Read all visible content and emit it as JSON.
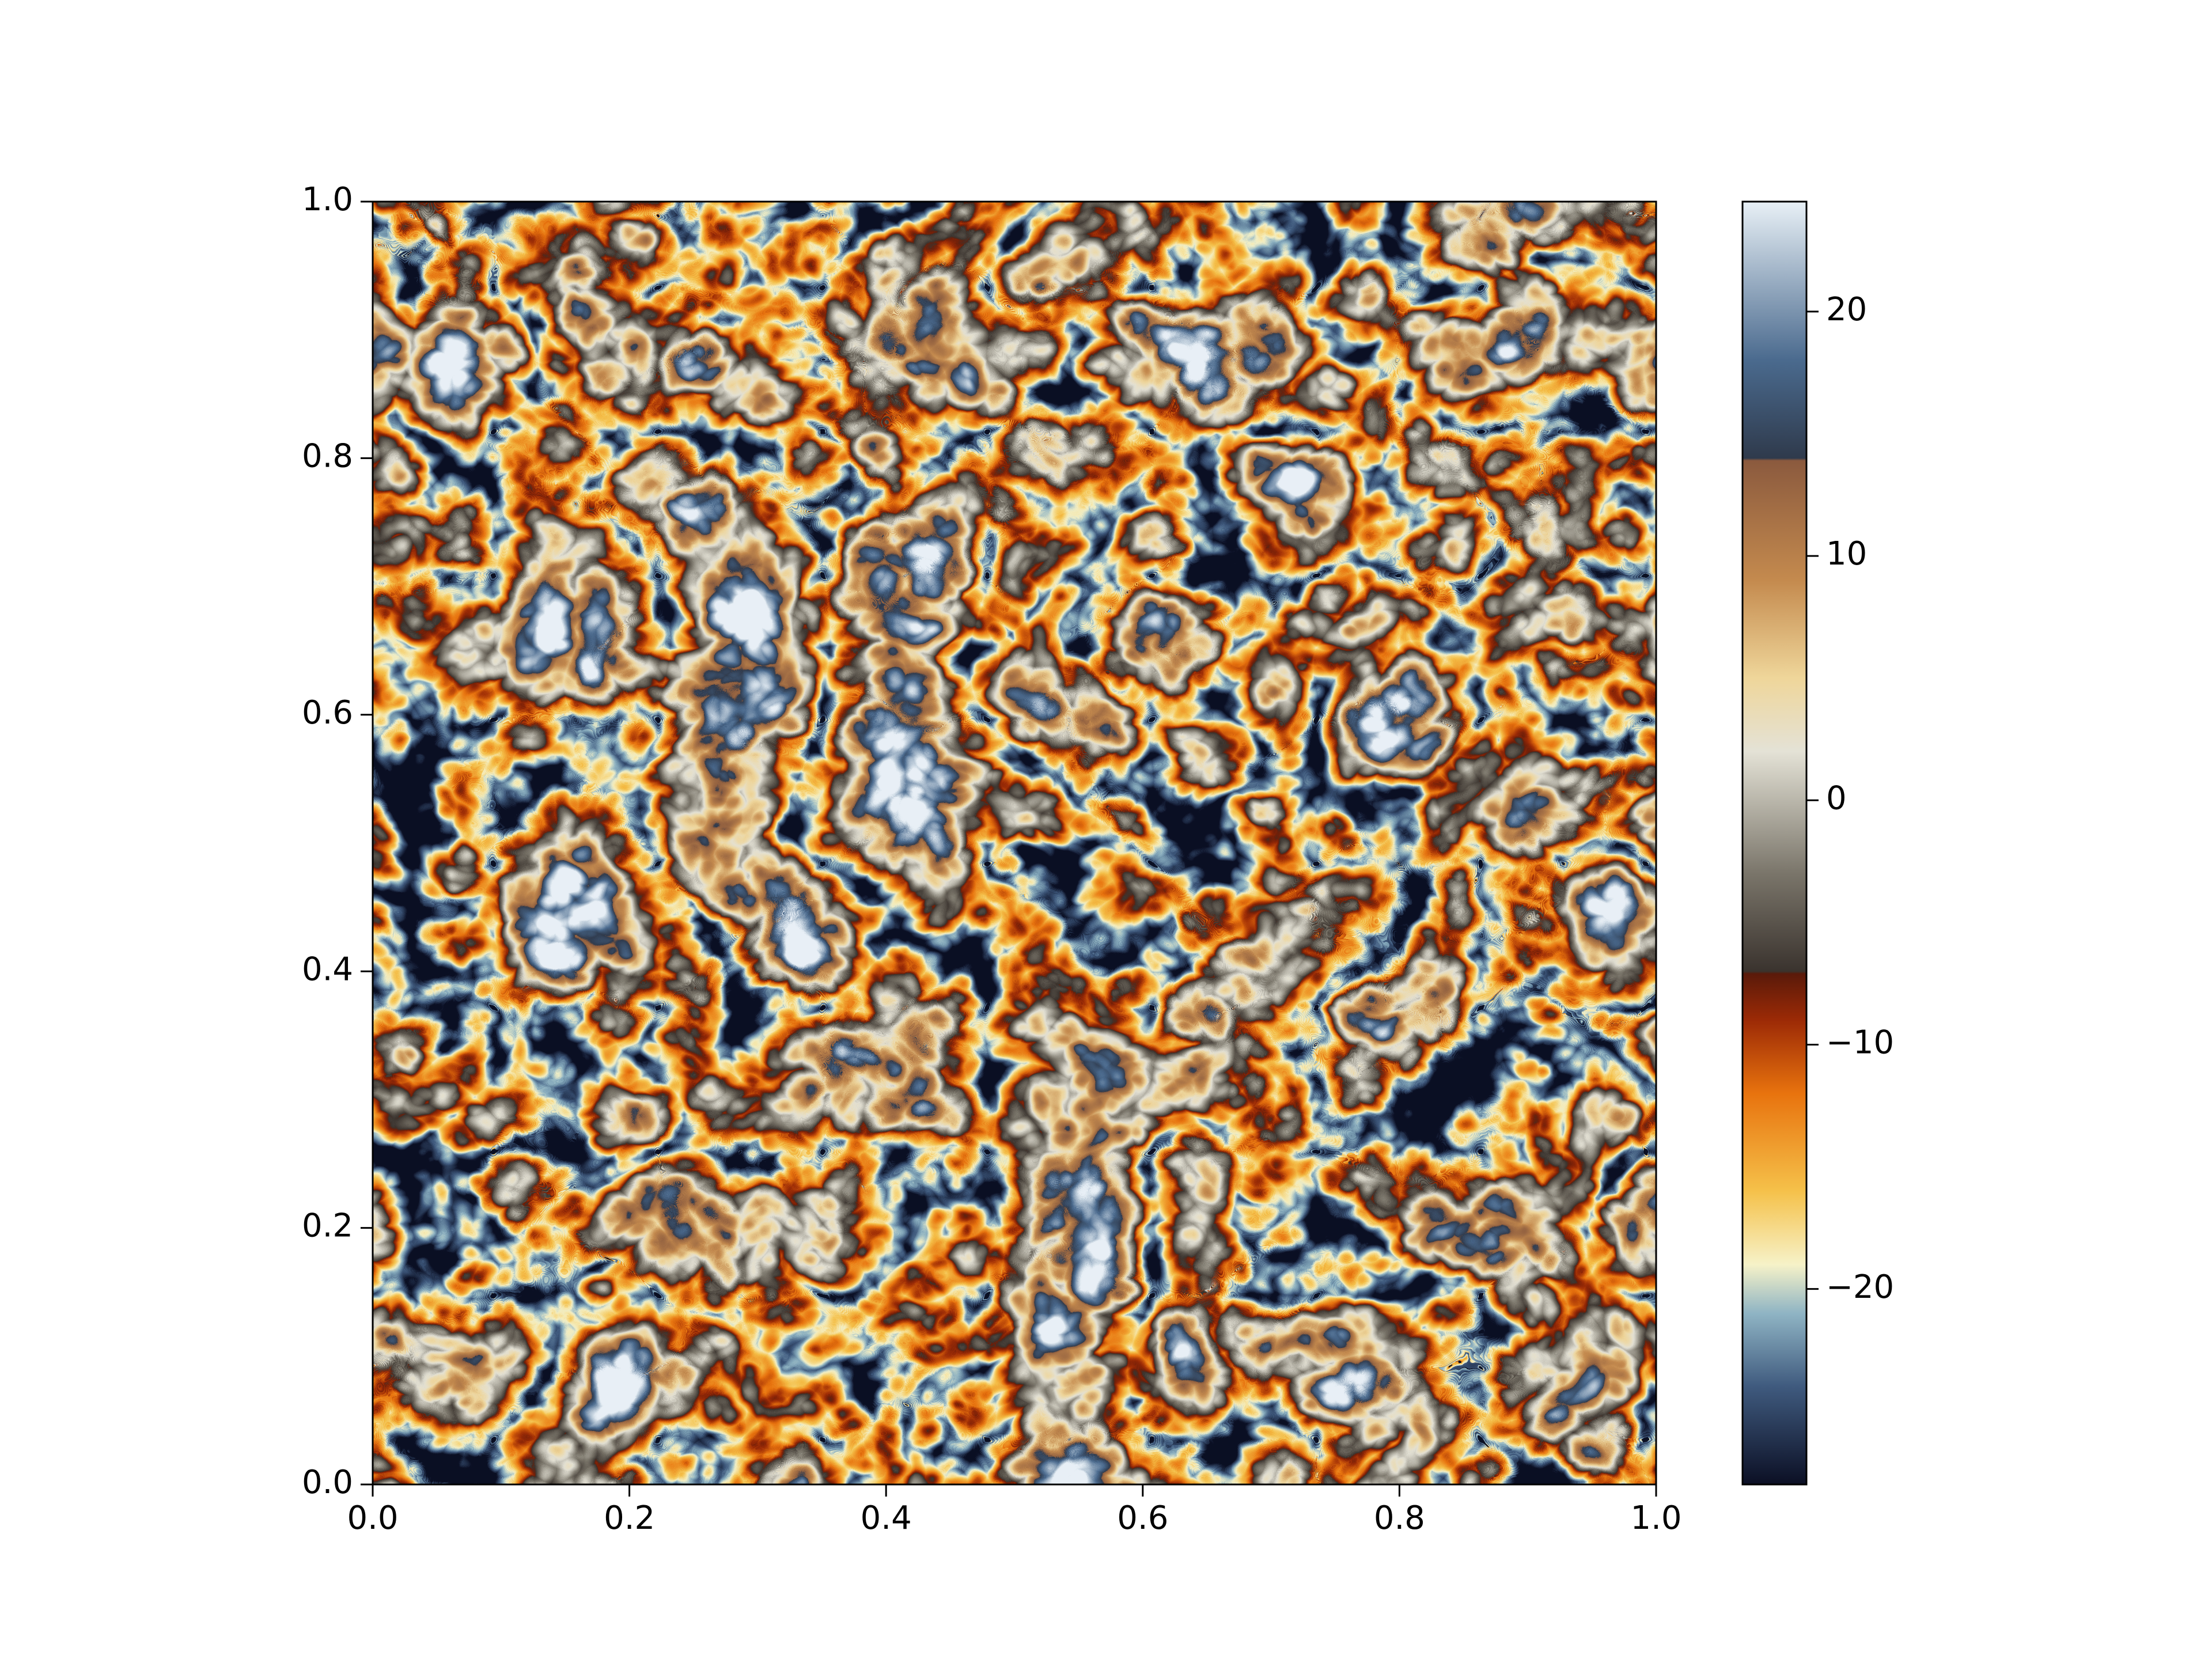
{
  "chart_data": {
    "type": "heatmap",
    "xlim": [
      0,
      1
    ],
    "ylim": [
      0,
      1
    ],
    "xticks": [
      {
        "value": 0,
        "label": "0.0"
      },
      0.2,
      0.4,
      0.6,
      0.8,
      {
        "value": 1,
        "label": "1.0"
      }
    ],
    "yticks": [
      {
        "value": 0,
        "label": "0.0"
      },
      0.2,
      0.4,
      0.6,
      0.8,
      {
        "value": 1,
        "label": "1.0"
      }
    ],
    "clim": [
      -28,
      24.5
    ],
    "cticks": [
      {
        "value": -20,
        "label": "−20"
      },
      {
        "value": -10,
        "label": "−10"
      },
      0,
      10,
      20
    ],
    "colormap": [
      {
        "value": -28,
        "color": "#0b0f24"
      },
      {
        "value": -24,
        "color": "#3f5a7e"
      },
      {
        "value": -21,
        "color": "#8fb4c4"
      },
      {
        "value": -19,
        "color": "#f6f2c8"
      },
      {
        "value": -16,
        "color": "#f5c14a"
      },
      {
        "value": -12,
        "color": "#e8730e"
      },
      {
        "value": -9,
        "color": "#9c2a06"
      },
      {
        "value": -7.1,
        "color": "#5a1a0a"
      },
      {
        "value": -7,
        "color": "#3a332e"
      },
      {
        "value": -3,
        "color": "#7a756a"
      },
      {
        "value": 2,
        "color": "#e4e2d6"
      },
      {
        "value": 5,
        "color": "#efd69a"
      },
      {
        "value": 9,
        "color": "#c48a4e"
      },
      {
        "value": 13.9,
        "color": "#8b5a3e"
      },
      {
        "value": 14,
        "color": "#2f3a4c"
      },
      {
        "value": 18,
        "color": "#4a6a8e"
      },
      {
        "value": 24.5,
        "color": "#e8f0f6"
      }
    ]
  }
}
